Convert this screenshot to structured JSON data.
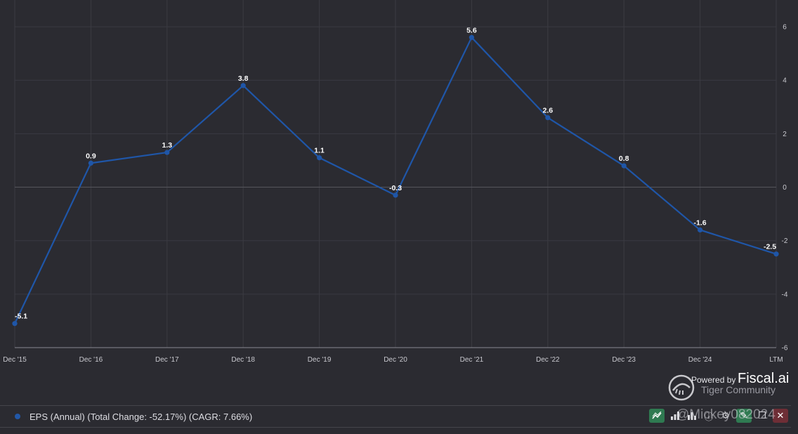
{
  "chart_data": {
    "type": "line",
    "categories": [
      "Dec '15",
      "Dec '16",
      "Dec '17",
      "Dec '18",
      "Dec '19",
      "Dec '20",
      "Dec '21",
      "Dec '22",
      "Dec '23",
      "Dec '24",
      "LTM"
    ],
    "series": [
      {
        "name": "EPS (Annual)",
        "color": "#1f56a8",
        "values": [
          -5.1,
          0.9,
          1.3,
          3.8,
          1.1,
          -0.3,
          5.6,
          2.6,
          0.8,
          -1.6,
          -2.5
        ]
      }
    ],
    "data_labels": [
      "-5.1",
      "0.9",
      "1.3",
      "3.8",
      "1.1",
      "-0.3",
      "5.6",
      "2.6",
      "0.8",
      "-1.6",
      "-2.5"
    ],
    "y_ticks": [
      6,
      4,
      2,
      0,
      -2,
      -4,
      -6
    ],
    "ylim": [
      -6,
      7
    ],
    "y_axis_side": "right",
    "grid": true
  },
  "legend": {
    "text": "EPS (Annual) (Total Change: -52.17%) (CAGR: 7.66%)",
    "color": "#2258a8"
  },
  "toolbar": {
    "icons": [
      "line-chart-icon",
      "bar-chart-icon",
      "bar-chart-alt-icon",
      "info-icon",
      "settings-icon",
      "edit-icon",
      "copy-icon",
      "close-icon"
    ]
  },
  "watermark": {
    "powered_by": "Powered by",
    "brand": "Fiscal.ai",
    "community": "Tiger Community",
    "handle": "@Mickey082024"
  },
  "colors": {
    "background": "#2b2b31",
    "grid": "#3f3f46",
    "line": "#1f56a8"
  }
}
